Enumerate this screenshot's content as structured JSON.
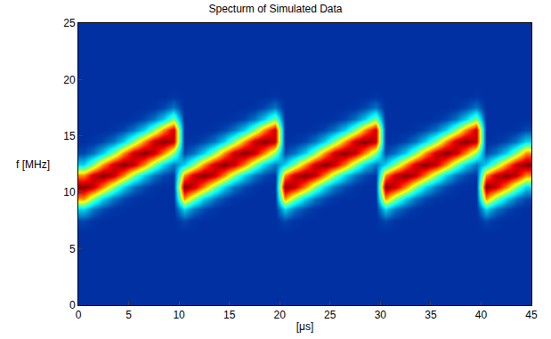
{
  "chart_data": {
    "type": "heatmap",
    "title": "Specturm of Simulated Data",
    "x_label": "[μs]",
    "y_label": "f [MHz]",
    "color": "Jet",
    "xlim": [
      0,
      45
    ],
    "xticks": [
      0,
      5,
      10,
      15,
      20,
      25,
      30,
      35,
      40,
      45
    ],
    "ylim": [
      0,
      25
    ],
    "yticks": [
      0,
      5,
      10,
      15,
      20,
      25
    ],
    "zlim": [
      0,
      1
    ],
    "x": [
      0.5,
      1.5,
      2.5,
      3.5,
      4.5,
      5.5,
      6.5,
      7.5,
      8.5,
      9.5,
      10.5,
      11.5,
      12.5,
      13.5,
      14.5,
      15.5,
      16.5,
      17.5,
      18.5,
      19.5,
      20.5,
      21.5,
      22.5,
      23.5,
      24.5,
      25.5,
      26.5,
      27.5,
      28.5,
      29.5,
      30.5,
      31.5,
      32.5,
      33.5,
      34.5,
      35.5,
      36.5,
      37.5,
      38.5,
      39.5,
      40.5,
      41.5,
      42.5,
      43.5,
      44.5
    ],
    "y": [
      0.5,
      1.5,
      2.5,
      3.5,
      4.5,
      5.5,
      6.5,
      7.5,
      8.5,
      9.5,
      10.5,
      11.5,
      12.5,
      13.5,
      14.5,
      15.5,
      16.5,
      17.5,
      18.5,
      19.5,
      20.5,
      21.5,
      22.5,
      23.5,
      24.5
    ],
    "cells": [
      [
        0.1,
        0.1,
        0.1,
        0.1,
        0.1,
        0.1,
        0.1,
        0.1,
        0.1,
        0.1,
        0.1,
        0.1,
        0.1,
        0.1,
        0.1,
        0.1,
        0.1,
        0.1,
        0.1,
        0.1,
        0.1,
        0.1,
        0.1,
        0.1,
        0.1,
        0.1,
        0.1,
        0.1,
        0.1,
        0.1,
        0.1,
        0.1,
        0.1,
        0.1,
        0.1,
        0.1,
        0.1,
        0.1,
        0.1,
        0.1,
        0.1,
        0.1,
        0.1,
        0.1,
        0.1
      ],
      [
        0.1,
        0.1,
        0.1,
        0.1,
        0.1,
        0.1,
        0.1,
        0.1,
        0.1,
        0.1,
        0.1,
        0.1,
        0.1,
        0.1,
        0.1,
        0.1,
        0.1,
        0.1,
        0.1,
        0.1,
        0.1,
        0.1,
        0.1,
        0.1,
        0.1,
        0.1,
        0.1,
        0.1,
        0.1,
        0.1,
        0.1,
        0.1,
        0.1,
        0.1,
        0.1,
        0.1,
        0.1,
        0.1,
        0.1,
        0.1,
        0.1,
        0.1,
        0.1,
        0.1,
        0.1
      ],
      [
        0.1,
        0.1,
        0.1,
        0.1,
        0.1,
        0.1,
        0.1,
        0.1,
        0.1,
        0.1,
        0.1,
        0.1,
        0.1,
        0.1,
        0.1,
        0.1,
        0.1,
        0.1,
        0.1,
        0.1,
        0.1,
        0.1,
        0.1,
        0.1,
        0.1,
        0.1,
        0.1,
        0.1,
        0.1,
        0.1,
        0.1,
        0.1,
        0.1,
        0.1,
        0.1,
        0.1,
        0.1,
        0.1,
        0.1,
        0.1,
        0.1,
        0.1,
        0.1,
        0.1,
        0.1
      ],
      [
        0.1,
        0.1,
        0.1,
        0.1,
        0.1,
        0.1,
        0.1,
        0.1,
        0.1,
        0.1,
        0.1,
        0.1,
        0.1,
        0.1,
        0.1,
        0.1,
        0.1,
        0.1,
        0.1,
        0.1,
        0.1,
        0.1,
        0.1,
        0.1,
        0.1,
        0.1,
        0.1,
        0.1,
        0.1,
        0.1,
        0.1,
        0.1,
        0.1,
        0.1,
        0.1,
        0.1,
        0.1,
        0.1,
        0.1,
        0.1,
        0.1,
        0.1,
        0.1,
        0.1,
        0.1
      ],
      [
        0.1,
        0.1,
        0.1,
        0.1,
        0.1,
        0.1,
        0.1,
        0.1,
        0.1,
        0.1,
        0.1,
        0.1,
        0.1,
        0.1,
        0.1,
        0.1,
        0.1,
        0.1,
        0.1,
        0.1,
        0.1,
        0.1,
        0.1,
        0.1,
        0.1,
        0.1,
        0.1,
        0.1,
        0.1,
        0.1,
        0.1,
        0.1,
        0.1,
        0.1,
        0.1,
        0.1,
        0.1,
        0.1,
        0.1,
        0.1,
        0.1,
        0.1,
        0.1,
        0.1,
        0.1
      ],
      [
        0.1,
        0.1,
        0.1,
        0.1,
        0.1,
        0.1,
        0.1,
        0.1,
        0.1,
        0.1,
        0.1,
        0.1,
        0.1,
        0.1,
        0.1,
        0.1,
        0.1,
        0.1,
        0.1,
        0.1,
        0.1,
        0.1,
        0.1,
        0.1,
        0.1,
        0.1,
        0.1,
        0.1,
        0.1,
        0.1,
        0.1,
        0.1,
        0.1,
        0.1,
        0.1,
        0.1,
        0.1,
        0.1,
        0.1,
        0.1,
        0.1,
        0.1,
        0.1,
        0.1,
        0.1
      ],
      [
        0.1,
        0.1,
        0.1,
        0.1,
        0.1,
        0.1,
        0.1,
        0.1,
        0.1,
        0.1,
        0.1,
        0.1,
        0.1,
        0.1,
        0.1,
        0.1,
        0.1,
        0.1,
        0.1,
        0.1,
        0.1,
        0.1,
        0.1,
        0.1,
        0.1,
        0.1,
        0.1,
        0.1,
        0.1,
        0.1,
        0.1,
        0.1,
        0.1,
        0.1,
        0.1,
        0.1,
        0.1,
        0.1,
        0.1,
        0.1,
        0.1,
        0.1,
        0.1,
        0.1,
        0.1
      ],
      [
        0.14,
        0.11,
        0.1,
        0.1,
        0.1,
        0.1,
        0.1,
        0.1,
        0.1,
        0.1,
        0.14,
        0.11,
        0.1,
        0.1,
        0.1,
        0.1,
        0.1,
        0.1,
        0.1,
        0.1,
        0.14,
        0.11,
        0.1,
        0.1,
        0.1,
        0.1,
        0.1,
        0.1,
        0.1,
        0.1,
        0.14,
        0.11,
        0.1,
        0.1,
        0.1,
        0.1,
        0.1,
        0.1,
        0.1,
        0.1,
        0.14,
        0.11,
        0.1,
        0.1,
        0.1
      ],
      [
        0.32,
        0.2,
        0.14,
        0.11,
        0.1,
        0.1,
        0.1,
        0.1,
        0.1,
        0.1,
        0.32,
        0.2,
        0.14,
        0.11,
        0.1,
        0.1,
        0.1,
        0.1,
        0.1,
        0.1,
        0.32,
        0.2,
        0.14,
        0.11,
        0.1,
        0.1,
        0.1,
        0.1,
        0.1,
        0.1,
        0.32,
        0.2,
        0.14,
        0.11,
        0.1,
        0.1,
        0.1,
        0.1,
        0.1,
        0.1,
        0.32,
        0.2,
        0.14,
        0.11,
        0.1
      ],
      [
        0.74,
        0.51,
        0.32,
        0.2,
        0.14,
        0.11,
        0.1,
        0.1,
        0.1,
        0.1,
        0.74,
        0.51,
        0.32,
        0.2,
        0.14,
        0.11,
        0.1,
        0.1,
        0.1,
        0.1,
        0.74,
        0.51,
        0.32,
        0.2,
        0.14,
        0.11,
        0.1,
        0.1,
        0.1,
        0.1,
        0.74,
        0.51,
        0.32,
        0.2,
        0.14,
        0.11,
        0.1,
        0.1,
        0.1,
        0.1,
        0.74,
        0.51,
        0.32,
        0.2,
        0.14
      ],
      [
        1,
        0.93,
        0.74,
        0.51,
        0.32,
        0.2,
        0.14,
        0.11,
        0.1,
        0.1,
        1,
        0.93,
        0.74,
        0.51,
        0.32,
        0.2,
        0.14,
        0.11,
        0.1,
        0.1,
        1,
        0.93,
        0.74,
        0.51,
        0.32,
        0.2,
        0.14,
        0.11,
        0.1,
        0.1,
        1,
        0.93,
        0.74,
        0.51,
        0.32,
        0.2,
        0.14,
        0.11,
        0.1,
        0.1,
        1,
        0.93,
        0.74,
        0.51,
        0.32
      ],
      [
        0.74,
        0.93,
        1,
        0.93,
        0.74,
        0.51,
        0.32,
        0.2,
        0.14,
        0.11,
        0.74,
        0.93,
        1,
        0.93,
        0.74,
        0.51,
        0.32,
        0.2,
        0.14,
        0.11,
        0.74,
        0.93,
        1,
        0.93,
        0.74,
        0.51,
        0.32,
        0.2,
        0.14,
        0.11,
        0.74,
        0.93,
        1,
        0.93,
        0.74,
        0.51,
        0.32,
        0.2,
        0.14,
        0.11,
        0.74,
        0.93,
        1,
        0.93,
        0.74
      ],
      [
        0.32,
        0.51,
        0.74,
        0.93,
        1,
        0.93,
        0.74,
        0.51,
        0.32,
        0.2,
        0.32,
        0.51,
        0.74,
        0.93,
        1,
        0.93,
        0.74,
        0.51,
        0.32,
        0.2,
        0.32,
        0.51,
        0.74,
        0.93,
        1,
        0.93,
        0.74,
        0.51,
        0.32,
        0.2,
        0.32,
        0.51,
        0.74,
        0.93,
        1,
        0.93,
        0.74,
        0.51,
        0.32,
        0.2,
        0.32,
        0.51,
        0.74,
        0.93,
        1
      ],
      [
        0.14,
        0.2,
        0.32,
        0.51,
        0.74,
        0.93,
        1,
        0.93,
        0.74,
        0.51,
        0.14,
        0.2,
        0.32,
        0.51,
        0.74,
        0.93,
        1,
        0.93,
        0.74,
        0.51,
        0.14,
        0.2,
        0.32,
        0.51,
        0.74,
        0.93,
        1,
        0.93,
        0.74,
        0.51,
        0.14,
        0.2,
        0.32,
        0.51,
        0.74,
        0.93,
        1,
        0.93,
        0.74,
        0.51,
        0.14,
        0.2,
        0.32,
        0.51,
        0.74
      ],
      [
        0.1,
        0.11,
        0.14,
        0.2,
        0.32,
        0.51,
        0.74,
        0.93,
        1,
        0.93,
        0.1,
        0.11,
        0.14,
        0.2,
        0.32,
        0.51,
        0.74,
        0.93,
        1,
        0.93,
        0.1,
        0.11,
        0.14,
        0.2,
        0.32,
        0.51,
        0.74,
        0.93,
        1,
        0.93,
        0.1,
        0.11,
        0.14,
        0.2,
        0.32,
        0.51,
        0.74,
        0.93,
        1,
        0.93,
        0.1,
        0.11,
        0.14,
        0.2,
        0.32
      ],
      [
        0.1,
        0.1,
        0.1,
        0.11,
        0.14,
        0.2,
        0.32,
        0.51,
        0.74,
        0.93,
        0.1,
        0.1,
        0.1,
        0.11,
        0.14,
        0.2,
        0.32,
        0.51,
        0.74,
        0.93,
        0.1,
        0.1,
        0.1,
        0.11,
        0.14,
        0.2,
        0.32,
        0.51,
        0.74,
        0.93,
        0.1,
        0.1,
        0.1,
        0.11,
        0.14,
        0.2,
        0.32,
        0.51,
        0.74,
        0.93,
        0.1,
        0.1,
        0.1,
        0.11,
        0.14
      ],
      [
        0.1,
        0.1,
        0.1,
        0.1,
        0.1,
        0.11,
        0.14,
        0.2,
        0.32,
        0.51,
        0.1,
        0.1,
        0.1,
        0.1,
        0.1,
        0.11,
        0.14,
        0.2,
        0.32,
        0.51,
        0.1,
        0.1,
        0.1,
        0.1,
        0.1,
        0.11,
        0.14,
        0.2,
        0.32,
        0.51,
        0.1,
        0.1,
        0.1,
        0.1,
        0.1,
        0.11,
        0.14,
        0.2,
        0.32,
        0.51,
        0.1,
        0.1,
        0.1,
        0.1,
        0.1
      ],
      [
        0.1,
        0.1,
        0.1,
        0.1,
        0.1,
        0.1,
        0.1,
        0.11,
        0.14,
        0.2,
        0.1,
        0.1,
        0.1,
        0.1,
        0.1,
        0.1,
        0.1,
        0.11,
        0.14,
        0.2,
        0.1,
        0.1,
        0.1,
        0.1,
        0.1,
        0.1,
        0.1,
        0.11,
        0.14,
        0.2,
        0.1,
        0.1,
        0.1,
        0.1,
        0.1,
        0.1,
        0.1,
        0.11,
        0.14,
        0.2,
        0.1,
        0.1,
        0.1,
        0.1,
        0.1
      ],
      [
        0.1,
        0.1,
        0.1,
        0.1,
        0.1,
        0.1,
        0.1,
        0.1,
        0.1,
        0.11,
        0.1,
        0.1,
        0.1,
        0.1,
        0.1,
        0.1,
        0.1,
        0.1,
        0.1,
        0.11,
        0.1,
        0.1,
        0.1,
        0.1,
        0.1,
        0.1,
        0.1,
        0.1,
        0.1,
        0.11,
        0.1,
        0.1,
        0.1,
        0.1,
        0.1,
        0.1,
        0.1,
        0.1,
        0.1,
        0.11,
        0.1,
        0.1,
        0.1,
        0.1,
        0.1
      ],
      [
        0.1,
        0.1,
        0.1,
        0.1,
        0.1,
        0.1,
        0.1,
        0.1,
        0.1,
        0.1,
        0.1,
        0.1,
        0.1,
        0.1,
        0.1,
        0.1,
        0.1,
        0.1,
        0.1,
        0.1,
        0.1,
        0.1,
        0.1,
        0.1,
        0.1,
        0.1,
        0.1,
        0.1,
        0.1,
        0.1,
        0.1,
        0.1,
        0.1,
        0.1,
        0.1,
        0.1,
        0.1,
        0.1,
        0.1,
        0.1,
        0.1,
        0.1,
        0.1,
        0.1,
        0.1
      ],
      [
        0.1,
        0.1,
        0.1,
        0.1,
        0.1,
        0.1,
        0.1,
        0.1,
        0.1,
        0.1,
        0.1,
        0.1,
        0.1,
        0.1,
        0.1,
        0.1,
        0.1,
        0.1,
        0.1,
        0.1,
        0.1,
        0.1,
        0.1,
        0.1,
        0.1,
        0.1,
        0.1,
        0.1,
        0.1,
        0.1,
        0.1,
        0.1,
        0.1,
        0.1,
        0.1,
        0.1,
        0.1,
        0.1,
        0.1,
        0.1,
        0.1,
        0.1,
        0.1,
        0.1,
        0.1
      ],
      [
        0.1,
        0.1,
        0.1,
        0.1,
        0.1,
        0.1,
        0.1,
        0.1,
        0.1,
        0.1,
        0.1,
        0.1,
        0.1,
        0.1,
        0.1,
        0.1,
        0.1,
        0.1,
        0.1,
        0.1,
        0.1,
        0.1,
        0.1,
        0.1,
        0.1,
        0.1,
        0.1,
        0.1,
        0.1,
        0.1,
        0.1,
        0.1,
        0.1,
        0.1,
        0.1,
        0.1,
        0.1,
        0.1,
        0.1,
        0.1,
        0.1,
        0.1,
        0.1,
        0.1,
        0.1
      ],
      [
        0.1,
        0.1,
        0.1,
        0.1,
        0.1,
        0.1,
        0.1,
        0.1,
        0.1,
        0.1,
        0.1,
        0.1,
        0.1,
        0.1,
        0.1,
        0.1,
        0.1,
        0.1,
        0.1,
        0.1,
        0.1,
        0.1,
        0.1,
        0.1,
        0.1,
        0.1,
        0.1,
        0.1,
        0.1,
        0.1,
        0.1,
        0.1,
        0.1,
        0.1,
        0.1,
        0.1,
        0.1,
        0.1,
        0.1,
        0.1,
        0.1,
        0.1,
        0.1,
        0.1,
        0.1
      ],
      [
        0.1,
        0.1,
        0.1,
        0.1,
        0.1,
        0.1,
        0.1,
        0.1,
        0.1,
        0.1,
        0.1,
        0.1,
        0.1,
        0.1,
        0.1,
        0.1,
        0.1,
        0.1,
        0.1,
        0.1,
        0.1,
        0.1,
        0.1,
        0.1,
        0.1,
        0.1,
        0.1,
        0.1,
        0.1,
        0.1,
        0.1,
        0.1,
        0.1,
        0.1,
        0.1,
        0.1,
        0.1,
        0.1,
        0.1,
        0.1,
        0.1,
        0.1,
        0.1,
        0.1,
        0.1
      ],
      [
        0.1,
        0.1,
        0.1,
        0.1,
        0.1,
        0.1,
        0.1,
        0.1,
        0.1,
        0.1,
        0.1,
        0.1,
        0.1,
        0.1,
        0.1,
        0.1,
        0.1,
        0.1,
        0.1,
        0.1,
        0.1,
        0.1,
        0.1,
        0.1,
        0.1,
        0.1,
        0.1,
        0.1,
        0.1,
        0.1,
        0.1,
        0.1,
        0.1,
        0.1,
        0.1,
        0.1,
        0.1,
        0.1,
        0.1,
        0.1,
        0.1,
        0.1,
        0.1,
        0.1,
        0.1
      ]
    ]
  }
}
